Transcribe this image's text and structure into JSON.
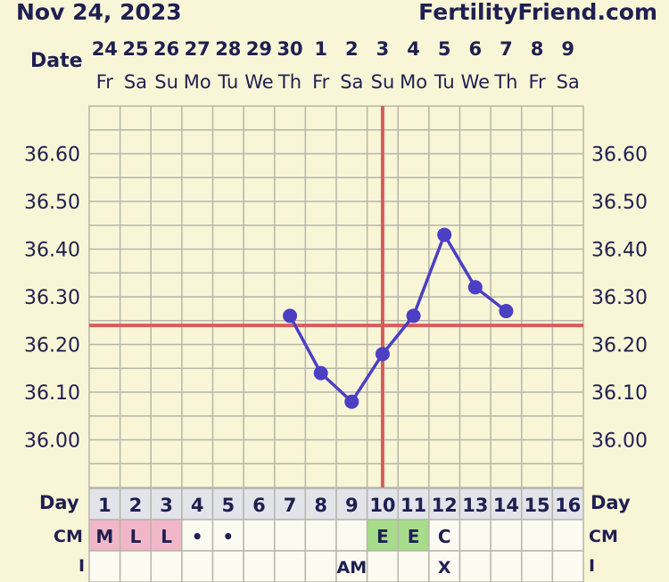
{
  "header": {
    "date": "Nov 24, 2023",
    "site": "FertilityFriend.com"
  },
  "labels": {
    "date": "Date",
    "day": "Day",
    "cm": "CM",
    "i": "I"
  },
  "colors": {
    "background": "#f8f6d6",
    "grid": "#b6b6aa",
    "coverline": "#d85c5c",
    "temperature_line": "#4b3fc4",
    "menses_cell": "#f1b7c9",
    "egg_white_cell": "#a6dc8a",
    "day_row": "#e3e3ea"
  },
  "chart_data": {
    "type": "line",
    "dates": [
      "24",
      "25",
      "26",
      "27",
      "28",
      "29",
      "30",
      "1",
      "2",
      "3",
      "4",
      "5",
      "6",
      "7",
      "8",
      "9"
    ],
    "weekdays": [
      "Fr",
      "Sa",
      "Su",
      "Mo",
      "Tu",
      "We",
      "Th",
      "Fr",
      "Sa",
      "Su",
      "Mo",
      "Tu",
      "We",
      "Th",
      "Fr",
      "Sa"
    ],
    "days": [
      "1",
      "2",
      "3",
      "4",
      "5",
      "6",
      "7",
      "8",
      "9",
      "10",
      "11",
      "12",
      "13",
      "14",
      "15",
      "16"
    ],
    "y_ticks": [
      "36.60",
      "36.50",
      "36.40",
      "36.30",
      "36.20",
      "36.10",
      "36.00"
    ],
    "ylim": [
      35.9,
      36.7
    ],
    "series": [
      {
        "values": [
          null,
          null,
          null,
          null,
          null,
          null,
          36.26,
          36.14,
          36.08,
          36.18,
          36.26,
          36.43,
          36.32,
          36.27,
          null,
          null
        ]
      }
    ],
    "coverline": 36.24,
    "ovulation_day": 10,
    "cm": [
      "M",
      "L",
      "L",
      "•",
      "•",
      "",
      "",
      "",
      "",
      "E",
      "E",
      "C",
      "",
      "",
      "",
      ""
    ],
    "cm_highlight": [
      "menses",
      "menses",
      "menses",
      "",
      "",
      "",
      "",
      "",
      "",
      "egg",
      "egg",
      "",
      "",
      "",
      "",
      ""
    ],
    "intercourse": [
      "",
      "",
      "",
      "",
      "",
      "",
      "",
      "",
      "AM",
      "",
      "",
      "X",
      "",
      "",
      "",
      ""
    ]
  }
}
